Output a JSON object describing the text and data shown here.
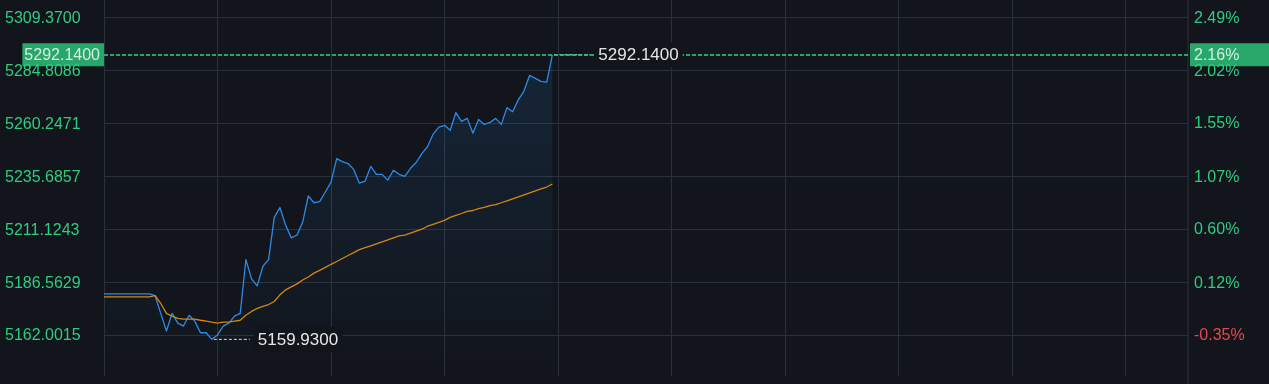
{
  "chart_data": {
    "type": "line",
    "categories": [
      null,
      null,
      null,
      null,
      null,
      null,
      null,
      null,
      null,
      null,
      null,
      null,
      null,
      null,
      null,
      null,
      null,
      null,
      null,
      null,
      null,
      null,
      null,
      null,
      null,
      null,
      null,
      null,
      null,
      null,
      null,
      null,
      null,
      null,
      null,
      null,
      null,
      null,
      null,
      null,
      null,
      null,
      null,
      null,
      null,
      null,
      null,
      null,
      null,
      null,
      null,
      null,
      null,
      null,
      null,
      null,
      null,
      null,
      null,
      null,
      null,
      null,
      null,
      null,
      null,
      null,
      null,
      null,
      null,
      null,
      null,
      null,
      null,
      null,
      null,
      null,
      null,
      null,
      null,
      null,
      null,
      null,
      null,
      null,
      null,
      null,
      null,
      null,
      null,
      null,
      null,
      null,
      null,
      null,
      null,
      null,
      null,
      null,
      null,
      null,
      null,
      null,
      null,
      null,
      null,
      null,
      null,
      null,
      null,
      null,
      null,
      null,
      null,
      null,
      null,
      null,
      null,
      null,
      null,
      null,
      null,
      null,
      null,
      null,
      null,
      null,
      null,
      null,
      null,
      null,
      null,
      null,
      null,
      null,
      null,
      null,
      null,
      null,
      null,
      null,
      null,
      null,
      null,
      null,
      null,
      null,
      null,
      null,
      null,
      null,
      null,
      null,
      null,
      null,
      null,
      null,
      null,
      null,
      null,
      null,
      null,
      null,
      null,
      null,
      null,
      null,
      null,
      null,
      null,
      null,
      null,
      null,
      null,
      null,
      null,
      null,
      null,
      null,
      null,
      null,
      null,
      null,
      null,
      null,
      null,
      null,
      null,
      null,
      null,
      null,
      null,
      null
    ],
    "series": [
      {
        "type": "area",
        "color": "#2b8be6",
        "values": [
          5181.1,
          5181.1,
          5181.1,
          5181.1,
          5181.1,
          5181.1,
          5181.1,
          5181.1,
          5181.1,
          5180.2,
          5172.0,
          5163.8,
          5172.0,
          5167.5,
          5166.1,
          5171.1,
          5168.4,
          5163.0,
          5163.0,
          5159.93,
          5162.0,
          5166.1,
          5167.5,
          5170.7,
          5172.0,
          5197.0,
          5188.0,
          5184.8,
          5193.9,
          5197.0,
          5216.6,
          5221.2,
          5213.0,
          5207.1,
          5208.4,
          5214.3,
          5226.6,
          5223.4,
          5223.9,
          5228.4,
          5233.0,
          5243.9,
          5242.5,
          5241.6,
          5238.9,
          5232.5,
          5233.4,
          5240.3,
          5236.6,
          5236.6,
          5233.9,
          5238.5,
          5236.6,
          5235.7,
          5239.4,
          5242.1,
          5246.2,
          5249.4,
          5255.3,
          5258.5,
          5259.4,
          5257.1,
          5265.3,
          5261.2,
          5262.6,
          5255.7,
          5262.1,
          5259.8,
          5260.7,
          5262.6,
          5259.8,
          5267.6,
          5265.7,
          5271.2,
          5275.3,
          5282.6,
          5281.2,
          5279.8,
          5279.4,
          5292.14,
          null,
          null,
          null,
          null,
          null,
          null,
          null,
          null,
          null,
          null,
          null,
          null,
          null,
          null,
          null,
          null,
          null,
          null,
          null,
          null,
          null,
          null,
          null,
          null,
          null,
          null,
          null,
          null,
          null,
          null,
          null,
          null,
          null,
          null,
          null,
          null,
          null,
          null,
          null,
          null,
          null,
          null,
          null,
          null,
          null,
          null,
          null,
          null,
          null,
          null,
          null,
          null,
          null,
          null,
          null,
          null,
          null,
          null,
          null,
          null,
          null,
          null,
          null,
          null,
          null,
          null,
          null,
          null,
          null,
          null,
          null,
          null,
          null,
          null,
          null,
          null,
          null,
          null,
          null,
          null,
          null,
          null,
          null,
          null,
          null,
          null,
          null,
          null,
          null,
          null,
          null,
          null,
          null,
          null,
          null,
          null,
          null,
          null,
          null,
          null,
          null,
          null,
          null,
          null,
          null,
          null,
          null,
          null,
          null,
          null,
          null,
          null
        ]
      },
      {
        "type": "line",
        "color": "#d4870f",
        "values": [
          5179.7,
          5179.7,
          5179.7,
          5179.7,
          5179.7,
          5179.7,
          5179.7,
          5179.7,
          5179.7,
          5180.2,
          5176.6,
          5172.0,
          5170.7,
          5169.7,
          5169.3,
          5169.3,
          5169.3,
          5168.8,
          5168.4,
          5167.9,
          5167.5,
          5167.9,
          5167.9,
          5168.4,
          5168.8,
          5171.1,
          5172.9,
          5174.3,
          5175.2,
          5176.1,
          5177.5,
          5180.6,
          5182.9,
          5184.3,
          5185.7,
          5187.5,
          5188.9,
          5190.7,
          5192.0,
          5193.4,
          5194.8,
          5196.1,
          5197.5,
          5198.9,
          5200.2,
          5201.6,
          5202.5,
          5203.4,
          5204.3,
          5205.2,
          5206.1,
          5207.1,
          5208.0,
          5208.4,
          5209.3,
          5210.2,
          5211.1,
          5212.5,
          5213.4,
          5214.3,
          5215.2,
          5216.6,
          5217.5,
          5218.4,
          5219.4,
          5219.8,
          5220.7,
          5221.2,
          5222.1,
          5222.5,
          5223.4,
          5224.3,
          5225.2,
          5226.1,
          5227.1,
          5228.0,
          5228.9,
          5229.8,
          5230.7,
          5232.1,
          null,
          null,
          null,
          null,
          null,
          null,
          null,
          null,
          null,
          null,
          null,
          null,
          null,
          null,
          null,
          null,
          null,
          null,
          null,
          null,
          null,
          null,
          null,
          null,
          null,
          null,
          null,
          null,
          null,
          null,
          null,
          null,
          null,
          null,
          null,
          null,
          null,
          null,
          null,
          null,
          null,
          null,
          null,
          null,
          null,
          null,
          null,
          null,
          null,
          null,
          null,
          null,
          null,
          null,
          null,
          null,
          null,
          null,
          null,
          null,
          null,
          null,
          null,
          null,
          null,
          null,
          null,
          null,
          null,
          null,
          null,
          null,
          null,
          null,
          null,
          null,
          null,
          null,
          null,
          null,
          null,
          null,
          null,
          null,
          null,
          null,
          null,
          null,
          null,
          null,
          null,
          null,
          null,
          null,
          null,
          null,
          null,
          null,
          null,
          null,
          null,
          null,
          null,
          null,
          null,
          null,
          null,
          null,
          null,
          null,
          null,
          null
        ]
      }
    ],
    "ylim": [
      5142.9,
      5317.6
    ],
    "yticks": [
      {
        "value": 5162.0015,
        "label": "5162.0015"
      },
      {
        "value": 5186.5629,
        "label": "5186.5629"
      },
      {
        "value": 5211.1243,
        "label": "5211.1243"
      },
      {
        "value": 5235.6857,
        "label": "5235.6857"
      },
      {
        "value": 5260.2471,
        "label": "5260.2471"
      },
      {
        "value": 5284.8086,
        "label": "5284.8086"
      },
      {
        "value": 5309.37,
        "label": "5309.3700"
      }
    ],
    "y2lim": [
      -0.72,
      2.65
    ],
    "y2ticks": [
      {
        "value": -0.35,
        "label": "-0.35%"
      },
      {
        "value": 0.12,
        "label": "0.12%"
      },
      {
        "value": 0.6,
        "label": "0.60%"
      },
      {
        "value": 1.07,
        "label": "1.07%"
      },
      {
        "value": 1.55,
        "label": "1.55%"
      },
      {
        "value": 2.02,
        "label": "2.02%"
      },
      {
        "value": 2.49,
        "label": "2.49%"
      }
    ],
    "ref_lines": [
      {
        "axis": "y",
        "value": 5292.14,
        "label": "5292.1400",
        "color": "#2ecc80",
        "line_style": "dashed"
      },
      {
        "axis": "y2",
        "value": 2.16,
        "label": "2.16%",
        "color": "#2ecc80",
        "line_style": "dashed"
      }
    ],
    "annotations": [
      {
        "text": "5292.1400",
        "y": 5292.14
      },
      "5159.9300"
    ],
    "grid": true
  }
}
